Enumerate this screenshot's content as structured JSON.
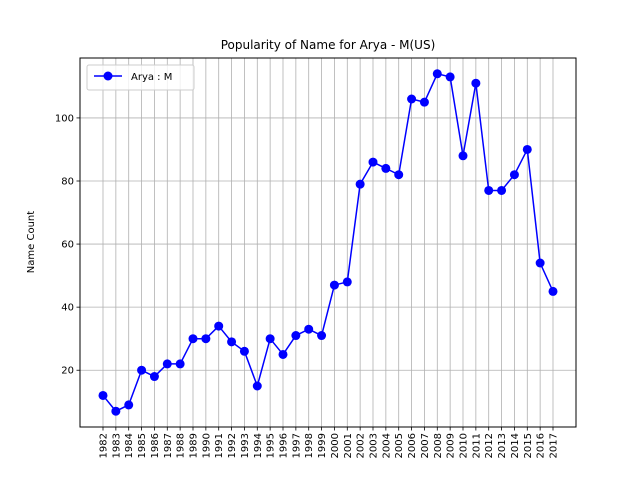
{
  "chart_data": {
    "type": "line",
    "title": "Popularity of Name for Arya - M(US)",
    "xlabel": "",
    "ylabel": "Name Count",
    "x": [
      "1982",
      "1983",
      "1984",
      "1985",
      "1986",
      "1987",
      "1988",
      "1989",
      "1990",
      "1991",
      "1992",
      "1993",
      "1994",
      "1995",
      "1996",
      "1997",
      "1998",
      "1999",
      "2000",
      "2001",
      "2002",
      "2003",
      "2004",
      "2005",
      "2006",
      "2007",
      "2008",
      "2009",
      "2010",
      "2011",
      "2012",
      "2013",
      "2014",
      "2015",
      "2016",
      "2017"
    ],
    "series": [
      {
        "name": "Arya : M",
        "color": "#0000ff",
        "marker": "circle",
        "values": [
          12,
          7,
          9,
          20,
          18,
          22,
          22,
          30,
          30,
          34,
          29,
          26,
          15,
          30,
          25,
          31,
          33,
          31,
          47,
          48,
          79,
          86,
          84,
          82,
          106,
          105,
          114,
          113,
          88,
          111,
          77,
          77,
          82,
          90,
          54,
          45
        ]
      }
    ],
    "ylim": [
      2,
      119
    ],
    "yticks": [
      20,
      40,
      60,
      80,
      100
    ],
    "grid": true,
    "legend_position": "upper left"
  }
}
